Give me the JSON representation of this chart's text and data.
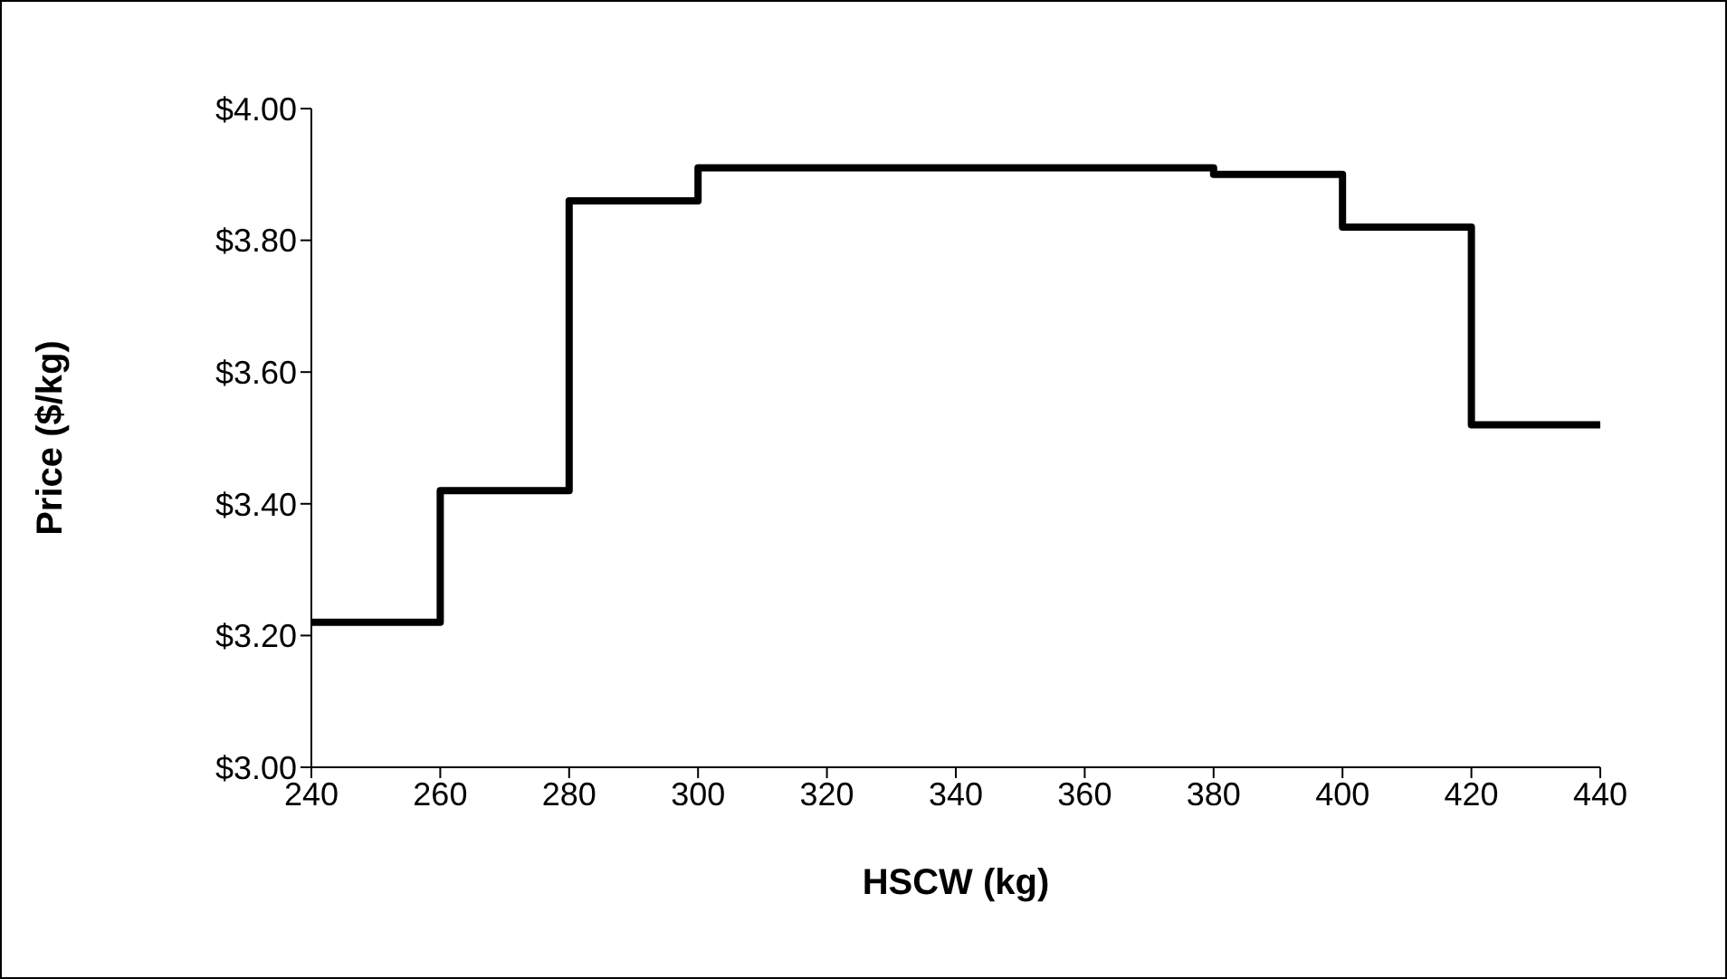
{
  "chart_data": {
    "type": "step",
    "xlabel": "HSCW (kg)",
    "ylabel": "Price ($/kg)",
    "x": [
      240,
      260,
      280,
      300,
      380,
      400,
      420,
      440
    ],
    "values": [
      3.22,
      3.42,
      3.86,
      3.91,
      3.9,
      3.82,
      3.52,
      3.52
    ],
    "color": "#000000",
    "xlim": [
      240,
      440
    ],
    "xticks": [
      240,
      260,
      280,
      300,
      320,
      340,
      360,
      380,
      400,
      420,
      440
    ],
    "ylim": [
      3,
      4
    ],
    "yticks": [
      {
        "value": 3,
        "label": "$3.00"
      },
      {
        "value": 3.2,
        "label": "$3.20"
      },
      {
        "value": 3.4,
        "label": "$3.40"
      },
      {
        "value": 3.6,
        "label": "$3.60"
      },
      {
        "value": 3.8,
        "label": "$3.80"
      },
      {
        "value": 4,
        "label": "$4.00"
      }
    ],
    "grid": false,
    "legend": false
  }
}
